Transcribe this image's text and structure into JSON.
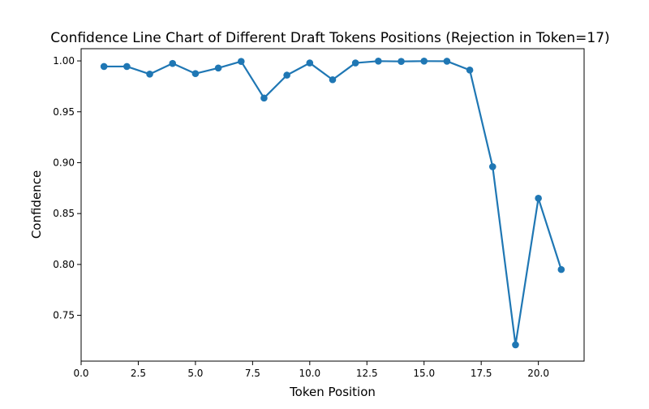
{
  "chart_data": {
    "type": "line",
    "title": "Confidence Line Chart of Different Draft Tokens Positions (Rejection in Token=17)",
    "xlabel": "Token Position",
    "ylabel": "Confidence",
    "xlim": [
      0,
      22
    ],
    "ylim": [
      0.705,
      1.012
    ],
    "xticks": [
      "0.0",
      "2.5",
      "5.0",
      "7.5",
      "10.0",
      "12.5",
      "15.0",
      "17.5",
      "20.0"
    ],
    "xtick_values": [
      0,
      2.5,
      5,
      7.5,
      10,
      12.5,
      15,
      17.5,
      20
    ],
    "yticks": [
      "0.75",
      "0.80",
      "0.85",
      "0.90",
      "0.95",
      "1.00"
    ],
    "ytick_values": [
      0.75,
      0.8,
      0.85,
      0.9,
      0.95,
      1.0
    ],
    "grid": false,
    "series": [
      {
        "color": "#1f77b4",
        "marker": "circle",
        "x": [
          1,
          2,
          3,
          4,
          5,
          6,
          7,
          8,
          9,
          10,
          11,
          12,
          13,
          14,
          15,
          16,
          17,
          18,
          19,
          20,
          21
        ],
        "y": [
          0.9945,
          0.9945,
          0.987,
          0.9975,
          0.9875,
          0.993,
          0.9995,
          0.9635,
          0.986,
          0.998,
          0.9815,
          0.998,
          0.9998,
          0.9995,
          0.9998,
          0.9997,
          0.991,
          0.896,
          0.721,
          0.865,
          0.795
        ]
      }
    ]
  }
}
